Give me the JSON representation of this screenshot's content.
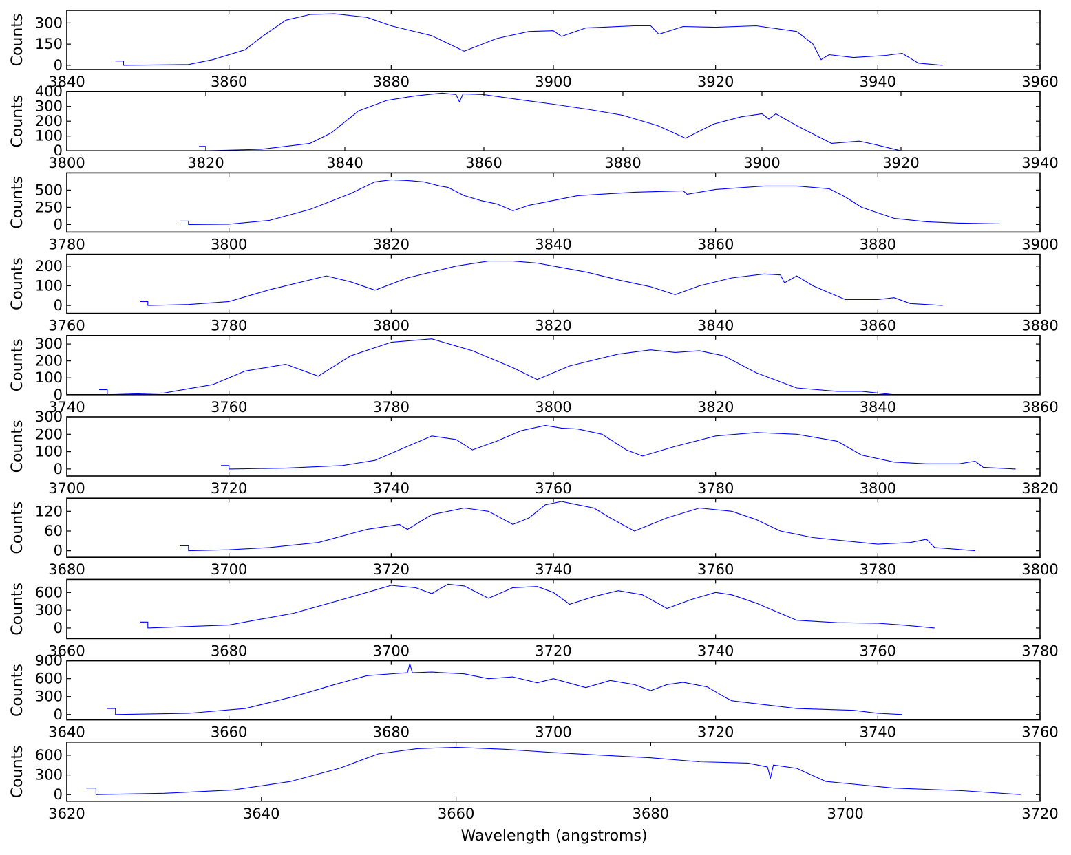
{
  "chart_data": {
    "type": "line",
    "line_color": "#0000ff",
    "xlabel": "Wavelength (angstroms)",
    "ylabel": "Counts",
    "grid": false,
    "panels": [
      {
        "xlim": [
          3840,
          3960
        ],
        "xticks": [
          3840,
          3860,
          3880,
          3900,
          3920,
          3940,
          3960
        ],
        "ylim": [
          -30,
          390
        ],
        "yticks": [
          0,
          150,
          300
        ],
        "x": [
          3846,
          3847,
          3847,
          3855,
          3858,
          3862,
          3864,
          3867,
          3870,
          3873,
          3877,
          3880,
          3885,
          3889,
          3893,
          3897,
          3900,
          3901,
          3904,
          3910,
          3912,
          3913,
          3916,
          3920,
          3925,
          3930,
          3932,
          3933,
          3934,
          3937,
          3941,
          3943,
          3945,
          3948
        ],
        "y": [
          30,
          30,
          0,
          5,
          40,
          110,
          200,
          320,
          360,
          365,
          340,
          280,
          210,
          100,
          190,
          240,
          245,
          205,
          265,
          280,
          280,
          220,
          275,
          270,
          280,
          240,
          150,
          40,
          75,
          55,
          70,
          85,
          15,
          0
        ]
      },
      {
        "xlim": [
          3800,
          3940
        ],
        "xticks": [
          3800,
          3820,
          3840,
          3860,
          3880,
          3900,
          3920,
          3940
        ],
        "ylim": [
          0,
          400
        ],
        "yticks": [
          0,
          100,
          200,
          300,
          400
        ],
        "x": [
          3819,
          3820,
          3820,
          3828,
          3835,
          3838,
          3842,
          3846,
          3850,
          3854,
          3856,
          3856.5,
          3857,
          3860,
          3863,
          3866,
          3870,
          3875,
          3880,
          3885,
          3889,
          3893,
          3897,
          3900,
          3901,
          3902,
          3905,
          3910,
          3914,
          3916,
          3920
        ],
        "y": [
          30,
          30,
          0,
          10,
          50,
          120,
          270,
          340,
          370,
          390,
          380,
          330,
          385,
          380,
          360,
          340,
          315,
          280,
          240,
          170,
          85,
          180,
          230,
          250,
          215,
          250,
          170,
          50,
          65,
          45,
          0
        ]
      },
      {
        "xlim": [
          3780,
          3900
        ],
        "xticks": [
          3780,
          3800,
          3820,
          3840,
          3860,
          3880,
          3900
        ],
        "ylim": [
          -110,
          750
        ],
        "yticks": [
          0,
          250,
          500
        ],
        "x": [
          3794,
          3795,
          3795,
          3800,
          3805,
          3810,
          3815,
          3818,
          3820,
          3822,
          3824,
          3826,
          3827,
          3829,
          3831,
          3833,
          3835,
          3837,
          3840,
          3843,
          3850,
          3856,
          3856.5,
          3860,
          3866,
          3870,
          3874,
          3876,
          3878,
          3882,
          3886,
          3890,
          3895
        ],
        "y": [
          50,
          50,
          0,
          5,
          60,
          220,
          450,
          620,
          650,
          640,
          620,
          560,
          540,
          420,
          350,
          300,
          200,
          280,
          350,
          420,
          470,
          490,
          440,
          510,
          560,
          560,
          520,
          400,
          250,
          90,
          40,
          20,
          10
        ]
      },
      {
        "xlim": [
          3760,
          3880
        ],
        "xticks": [
          3760,
          3780,
          3800,
          3820,
          3840,
          3860,
          3880
        ],
        "ylim": [
          -40,
          260
        ],
        "yticks": [
          0,
          100,
          200
        ],
        "x": [
          3769,
          3770,
          3770,
          3775,
          3780,
          3785,
          3792,
          3795,
          3798,
          3802,
          3808,
          3812,
          3815,
          3818,
          3820,
          3824,
          3828,
          3832,
          3835,
          3838,
          3842,
          3846,
          3848,
          3848.5,
          3850,
          3852,
          3856,
          3860,
          3862,
          3864,
          3868
        ],
        "y": [
          20,
          20,
          0,
          5,
          20,
          80,
          150,
          120,
          78,
          140,
          200,
          225,
          225,
          215,
          200,
          170,
          130,
          95,
          55,
          100,
          140,
          160,
          155,
          115,
          150,
          100,
          30,
          30,
          40,
          10,
          0
        ]
      },
      {
        "xlim": [
          3740,
          3860
        ],
        "xticks": [
          3740,
          3760,
          3780,
          3800,
          3820,
          3840,
          3860
        ],
        "ylim": [
          0,
          350
        ],
        "yticks": [
          0,
          100,
          200,
          300
        ],
        "x": [
          3744,
          3745,
          3745,
          3752,
          3758,
          3762,
          3767,
          3771,
          3775,
          3780,
          3785,
          3790,
          3795,
          3798,
          3802,
          3808,
          3812,
          3815,
          3818,
          3821,
          3825,
          3830,
          3835,
          3838,
          3842
        ],
        "y": [
          30,
          30,
          0,
          10,
          60,
          140,
          180,
          110,
          230,
          310,
          330,
          260,
          160,
          90,
          170,
          240,
          265,
          250,
          260,
          230,
          130,
          40,
          20,
          20,
          0
        ]
      },
      {
        "xlim": [
          3700,
          3820
        ],
        "xticks": [
          3700,
          3720,
          3740,
          3760,
          3780,
          3800,
          3820
        ],
        "ylim": [
          -40,
          300
        ],
        "yticks": [
          0,
          100,
          200,
          300
        ],
        "x": [
          3719,
          3720,
          3720,
          3727,
          3734,
          3738,
          3742,
          3745,
          3748,
          3750,
          3753,
          3756,
          3759,
          3761,
          3763,
          3766,
          3768,
          3769,
          3771,
          3775,
          3780,
          3785,
          3790,
          3795,
          3798,
          3802,
          3806,
          3810,
          3812,
          3813,
          3817
        ],
        "y": [
          20,
          20,
          0,
          5,
          20,
          50,
          130,
          190,
          170,
          110,
          160,
          220,
          250,
          235,
          230,
          200,
          140,
          110,
          75,
          130,
          190,
          210,
          200,
          160,
          80,
          40,
          30,
          30,
          45,
          10,
          0
        ]
      },
      {
        "xlim": [
          3680,
          3800
        ],
        "xticks": [
          3680,
          3700,
          3720,
          3740,
          3760,
          3780,
          3800
        ],
        "ylim": [
          -20,
          160
        ],
        "yticks": [
          0,
          60,
          120
        ],
        "x": [
          3694,
          3695,
          3695,
          3700,
          3705,
          3711,
          3717,
          3721,
          3722,
          3725,
          3729,
          3732,
          3735,
          3737,
          3739,
          3741,
          3743,
          3745,
          3747,
          3750,
          3754,
          3758,
          3762,
          3765,
          3768,
          3772,
          3776,
          3780,
          3784,
          3786,
          3787,
          3792
        ],
        "y": [
          15,
          15,
          0,
          3,
          10,
          25,
          65,
          80,
          65,
          110,
          130,
          120,
          80,
          100,
          140,
          150,
          140,
          130,
          100,
          60,
          100,
          130,
          120,
          95,
          60,
          40,
          30,
          20,
          25,
          35,
          10,
          0
        ]
      },
      {
        "xlim": [
          3660,
          3780
        ],
        "xticks": [
          3660,
          3680,
          3700,
          3720,
          3740,
          3760,
          3780
        ],
        "ylim": [
          -180,
          820
        ],
        "yticks": [
          0,
          300,
          600
        ],
        "x": [
          3669,
          3670,
          3670,
          3680,
          3688,
          3695,
          3700,
          3703,
          3705,
          3707,
          3709,
          3712,
          3715,
          3718,
          3720,
          3722,
          3725,
          3728,
          3731,
          3734,
          3737,
          3740,
          3742,
          3745,
          3750,
          3755,
          3760,
          3763,
          3767
        ],
        "y": [
          100,
          100,
          0,
          50,
          250,
          520,
          720,
          680,
          580,
          740,
          710,
          500,
          680,
          700,
          600,
          400,
          530,
          630,
          560,
          330,
          480,
          600,
          560,
          420,
          130,
          90,
          80,
          50,
          0
        ]
      },
      {
        "xlim": [
          3640,
          3760
        ],
        "xticks": [
          3640,
          3660,
          3680,
          3700,
          3720,
          3740,
          3760
        ],
        "ylim": [
          -90,
          900
        ],
        "yticks": [
          0,
          300,
          600,
          900
        ],
        "x": [
          3645,
          3646,
          3646,
          3655,
          3662,
          3668,
          3673,
          3677,
          3682,
          3682.3,
          3682.6,
          3685,
          3689,
          3692,
          3695,
          3698,
          3700,
          3704,
          3707,
          3710,
          3712,
          3714,
          3716,
          3719,
          3721,
          3722,
          3730,
          3737,
          3740,
          3743
        ],
        "y": [
          100,
          100,
          0,
          20,
          100,
          300,
          500,
          650,
          700,
          850,
          700,
          710,
          680,
          600,
          630,
          530,
          600,
          450,
          570,
          500,
          400,
          500,
          540,
          460,
          300,
          230,
          100,
          70,
          20,
          0
        ]
      },
      {
        "xlim": [
          3620,
          3720
        ],
        "xticks": [
          3620,
          3640,
          3660,
          3680,
          3700,
          3720
        ],
        "ylim": [
          -100,
          800
        ],
        "yticks": [
          0,
          300,
          600
        ],
        "x": [
          3622,
          3623,
          3623,
          3630,
          3637,
          3643,
          3648,
          3652,
          3656,
          3660,
          3665,
          3670,
          3675,
          3680,
          3685,
          3690,
          3692,
          3692.3,
          3692.6,
          3695,
          3698,
          3705,
          3712,
          3718
        ],
        "y": [
          100,
          100,
          0,
          20,
          70,
          200,
          400,
          620,
          700,
          720,
          690,
          640,
          600,
          560,
          500,
          480,
          420,
          250,
          450,
          400,
          200,
          100,
          60,
          0
        ]
      }
    ]
  }
}
